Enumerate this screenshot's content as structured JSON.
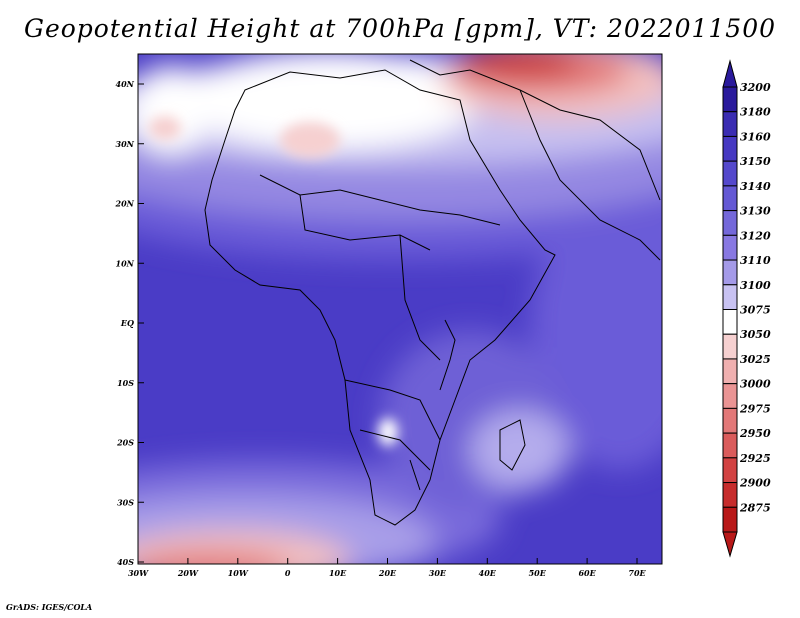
{
  "title": "Geopotential Height at 700hPa [gpm], VT: 2022011500",
  "footer": "GrADS: IGES/COLA",
  "lat_labels": [
    "40N",
    "30N",
    "20N",
    "10N",
    "EQ",
    "10S",
    "20S",
    "30S",
    "40S"
  ],
  "lon_labels": [
    "30W",
    "20W",
    "10W",
    "0",
    "10E",
    "20E",
    "30E",
    "40E",
    "50E",
    "60E",
    "70E"
  ],
  "colorbar": {
    "labels": [
      "3200",
      "3180",
      "3160",
      "3150",
      "3140",
      "3130",
      "3120",
      "3110",
      "3100",
      "3075",
      "3050",
      "3025",
      "3000",
      "2975",
      "2950",
      "2925",
      "2900",
      "2875"
    ],
    "colors": [
      "#2a1a9c",
      "#3a2cb2",
      "#4638c2",
      "#5448cc",
      "#6458d4",
      "#7468da",
      "#8878e2",
      "#a49ae8",
      "#c8c2f2",
      "#ffffff",
      "#f6d0d0",
      "#f0b0b0",
      "#ea9494",
      "#e27878",
      "#da5c5c",
      "#d24242",
      "#c62c2c",
      "#b81818"
    ],
    "top_arrow": "#2a1a9c",
    "bottom_arrow": "#b81818"
  }
}
